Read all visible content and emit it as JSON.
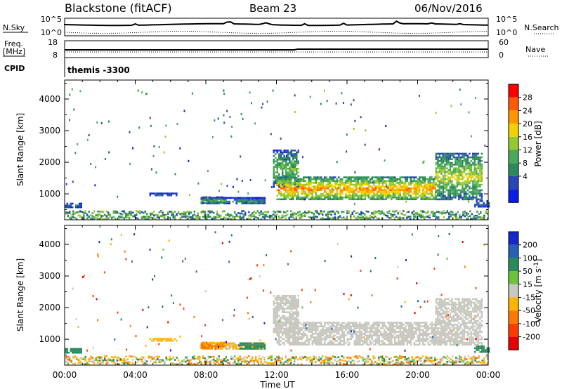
{
  "header": {
    "title": "Blackstone (fitACF)",
    "beam": "Beam 23",
    "date": "06/Nov/2016"
  },
  "sky_panel": {
    "left_label": "N.Sky",
    "right_label": "N.Search",
    "left_ticks": [
      "10^5",
      "10^0"
    ],
    "right_ticks": [
      "10^5",
      "10^0"
    ]
  },
  "freq_panel": {
    "left_label_1": "Freq.",
    "left_label_2": "[MHz]",
    "right_label": "Nave",
    "left_ticks": [
      "18",
      "8"
    ],
    "right_ticks": [
      "60",
      "0"
    ]
  },
  "cpid_panel": {
    "label": "CPID",
    "value": "themis -3300"
  },
  "power_panel": {
    "ylabel": "Slant Range [km]",
    "yticks": [
      "4000",
      "3000",
      "2000",
      "1000"
    ],
    "colorbar_label": "Power [dB]",
    "colorbar_ticks": [
      "28",
      "24",
      "20",
      "16",
      "12",
      "8",
      "4"
    ],
    "colors": [
      "#0a1ee6",
      "#2846b4",
      "#2a8a5a",
      "#4aa85c",
      "#96c832",
      "#f0d200",
      "#ff9600",
      "#ff5a00",
      "#ff0000"
    ]
  },
  "velocity_panel": {
    "ylabel": "Slant Range [km]",
    "yticks": [
      "4000",
      "3000",
      "2000",
      "1000"
    ],
    "colorbar_label": "Velocity [m s^-1]",
    "colorbar_ticks": [
      "200",
      "100",
      "50",
      "15",
      "-15",
      "-50",
      "-100",
      "-200"
    ],
    "colors": [
      "#1428c8",
      "#2860b4",
      "#2a8a5a",
      "#6cc23c",
      "#c8c8c0",
      "#ffb400",
      "#ff7800",
      "#ff3c00",
      "#e60000"
    ]
  },
  "xaxis": {
    "label": "Time UT",
    "ticks": [
      "00:00",
      "04:00",
      "08:00",
      "12:00",
      "16:00",
      "20:00",
      "00:00"
    ]
  },
  "chart_data": {
    "type": "heatmap",
    "title": "Blackstone (fitACF)",
    "subtitle": "Beam 23",
    "xlabel": "Time UT",
    "ylabel": "Slant Range [km]",
    "x_range_hours": [
      0,
      24
    ],
    "y_range_km": [
      180,
      4600
    ],
    "power_db_range": [
      0,
      32
    ],
    "velocity_range": [
      -250,
      250
    ],
    "features": [
      {
        "range_km": [
          580,
          720
        ],
        "time_h": [
          0.0,
          0.9
        ],
        "power_db": 8,
        "velocity": 60
      },
      {
        "range_km": [
          940,
          1040
        ],
        "time_h": [
          4.8,
          6.3
        ],
        "power_db": 6,
        "velocity": -40
      },
      {
        "range_km": [
          700,
          900
        ],
        "time_h": [
          7.7,
          11.3
        ],
        "power_db": 11,
        "velocity": -20
      },
      {
        "range_km": [
          700,
          920
        ],
        "time_h": [
          7.7,
          9.0
        ],
        "power_db": 12,
        "velocity": -55
      },
      {
        "range_km": [
          700,
          900
        ],
        "time_h": [
          9.9,
          11.3
        ],
        "power_db": 10,
        "velocity": 45
      },
      {
        "range_km": [
          1200,
          2400
        ],
        "time_h": [
          11.8,
          13.2
        ],
        "power_db": 14,
        "velocity": 0
      },
      {
        "range_km": [
          800,
          1550
        ],
        "time_h": [
          12.0,
          21.0
        ],
        "power_db": 24,
        "velocity": 0
      },
      {
        "range_km": [
          850,
          2300
        ],
        "time_h": [
          21.0,
          23.6
        ],
        "power_db": 18,
        "velocity": 0
      },
      {
        "range_km": [
          600,
          800
        ],
        "time_h": [
          23.2,
          24.0
        ],
        "power_db": 8,
        "velocity": 60
      }
    ]
  }
}
